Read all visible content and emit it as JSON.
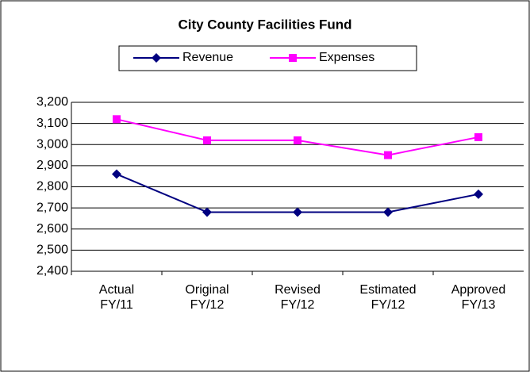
{
  "chart_data": {
    "type": "line",
    "title": "City County Facilities Fund",
    "categories": [
      [
        "Actual",
        "FY/11"
      ],
      [
        "Original",
        "FY/12"
      ],
      [
        "Revised",
        "FY/12"
      ],
      [
        "Estimated",
        "FY/12"
      ],
      [
        "Approved",
        "FY/13"
      ]
    ],
    "series": [
      {
        "name": "Revenue",
        "color": "#000080",
        "marker": "diamond",
        "values": [
          2860,
          2680,
          2680,
          2680,
          2765
        ]
      },
      {
        "name": "Expenses",
        "color": "#ff00ff",
        "marker": "square",
        "values": [
          3120,
          3020,
          3020,
          2950,
          3035
        ]
      }
    ],
    "ylim": [
      2400,
      3200
    ],
    "yticks": [
      {
        "value": 2400,
        "label": "2,400"
      },
      {
        "value": 2500,
        "label": "2,500"
      },
      {
        "value": 2600,
        "label": "2,600"
      },
      {
        "value": 2700,
        "label": "2,700"
      },
      {
        "value": 2800,
        "label": "2,800"
      },
      {
        "value": 2900,
        "label": "2,900"
      },
      {
        "value": 3000,
        "label": "3,000"
      },
      {
        "value": 3100,
        "label": "3,100"
      },
      {
        "value": 3200,
        "label": "3,200"
      }
    ],
    "grid": true,
    "legend": "top"
  }
}
